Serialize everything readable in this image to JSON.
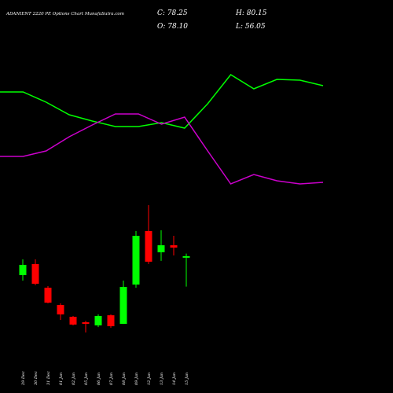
{
  "header": {
    "title": "ADANIENT 2220  PE Options  Chart MunafaSutra.com",
    "close_label": "C: 78.25",
    "high_label": "H: 80.15",
    "open_label": "O: 78.10",
    "low_label": "L: 56.05"
  },
  "chart_data": [
    {
      "type": "line",
      "ylim": [
        0,
        250
      ],
      "series": [
        {
          "color": "#00ff00",
          "values": [
            133,
            133,
            120,
            104,
            96,
            89,
            89,
            94,
            87,
            118,
            155,
            137,
            149,
            148,
            141
          ]
        },
        {
          "color": "#cc00cc",
          "values": [
            51,
            51,
            58,
            76,
            91,
            105,
            105,
            92,
            101,
            58,
            16,
            28,
            20,
            16,
            18
          ]
        }
      ]
    },
    {
      "type": "candlestick",
      "ylim": [
        1.3,
        121.8
      ],
      "up_color": "#00ff00",
      "down_color": "#ff0000",
      "categories": [
        "29 Dec",
        "30 Dec",
        "31 Dec",
        "01 Jan",
        "02 Jan",
        "05 Jan",
        "06 Jan",
        "07 Jan",
        "08 Jan",
        "09 Jan",
        "12 Jan",
        "13 Jan",
        "14 Jan",
        "15 Jan"
      ],
      "open": [
        64.4,
        72.5,
        55.2,
        42.6,
        34.0,
        30.0,
        27.7,
        35.1,
        28.8,
        57.5,
        96.6,
        81.1,
        86.2,
        78.1
      ],
      "high": [
        75.9,
        75.9,
        56.4,
        43.8,
        34.6,
        31.1,
        35.7,
        35.7,
        60.4,
        96.6,
        115.5,
        97.1,
        93.1,
        80.15
      ],
      "low": [
        60.4,
        57.0,
        43.8,
        31.7,
        27.7,
        22.5,
        26.5,
        26.0,
        28.8,
        55.2,
        72.5,
        74.8,
        78.8,
        56.05
      ],
      "close": [
        71.9,
        58.1,
        44.3,
        35.7,
        28.3,
        28.9,
        34.6,
        27.1,
        55.8,
        93.1,
        74.2,
        86.2,
        84.5,
        78.25
      ]
    }
  ]
}
